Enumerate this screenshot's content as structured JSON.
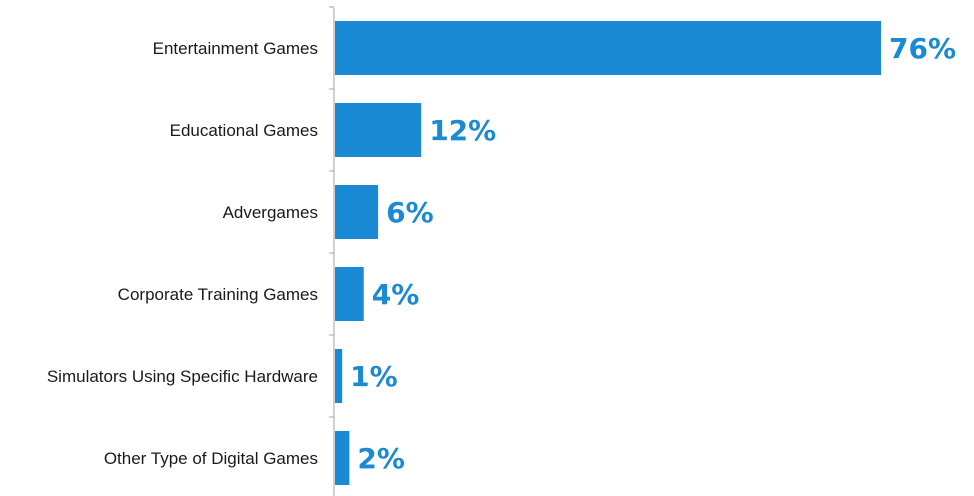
{
  "chart_data": {
    "type": "bar",
    "orientation": "horizontal",
    "categories": [
      "Entertainment Games",
      "Educational Games",
      "Advergames",
      "Corporate Training Games",
      "Simulators Using Specific Hardware",
      "Other Type of Digital Games"
    ],
    "values": [
      76,
      12,
      6,
      4,
      1,
      2
    ],
    "value_labels": [
      "76%",
      "12%",
      "6%",
      "4%",
      "1%",
      "2%"
    ],
    "unit": "%",
    "xlim": [
      0,
      76
    ],
    "grid": false,
    "legend": "none",
    "bar_color": "#1a8ad4",
    "label_color": "#1a8ad4",
    "axis_color": "#a0a0a0"
  }
}
